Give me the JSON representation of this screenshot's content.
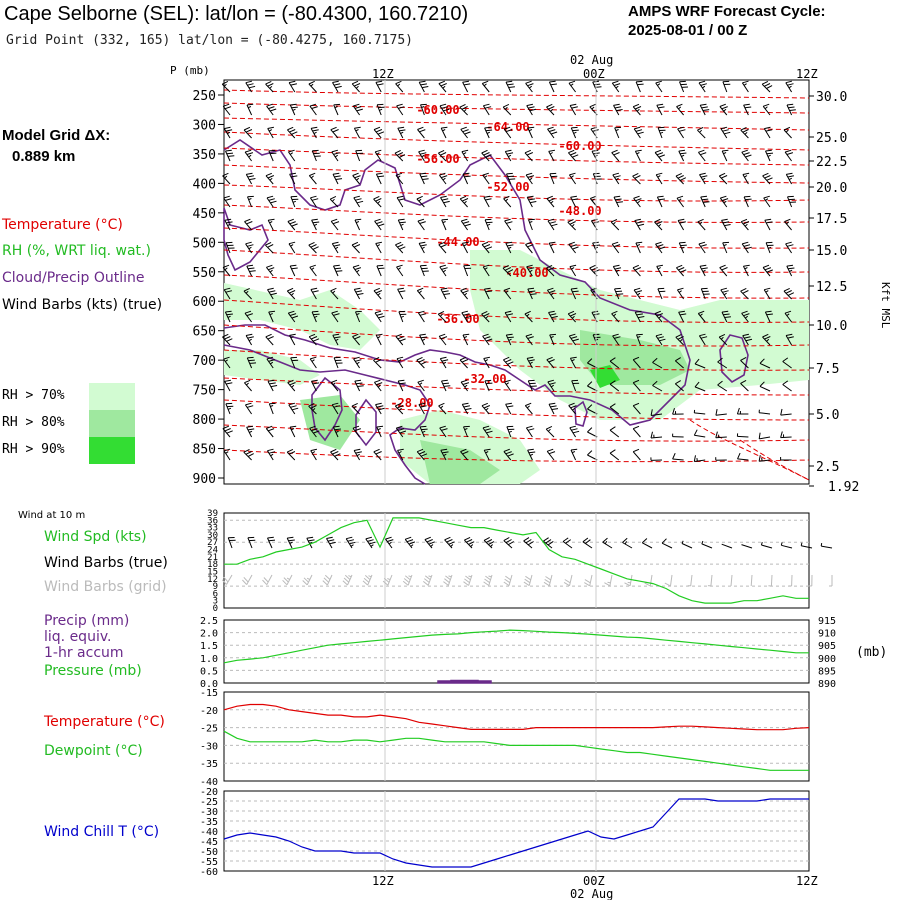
{
  "header": {
    "title": "Cape Selborne (SEL):  lat/lon = (-80.4300, 160.7210)",
    "subtitle": "Grid Point (332, 165) lat/lon = (-80.4275, 160.7175)",
    "cycle_line1": "AMPS WRF Forecast Cycle:",
    "cycle_line2": "2025-08-01 / 00  Z"
  },
  "model": {
    "grid_label": "Model Grid ΔX:",
    "grid_value": "0.889 km"
  },
  "legend": {
    "temperature": "Temperature (°C)",
    "rh": "RH (%, WRT liq. wat.)",
    "cloud": "Cloud/Precip Outline",
    "wind": "Wind Barbs (kts) (true)",
    "rh70": "RH > 70%",
    "rh80": "RH > 80%",
    "rh90": "RH > 90%"
  },
  "colors": {
    "temperature": "#ff0000",
    "rh": "#22cc22",
    "cloud": "#6a2a8a",
    "wind_true": "#000000",
    "wind_grid": "#bbbbbb",
    "precip": "#6a2a8a",
    "pressure": "#22cc22",
    "wind_chill": "#0000cc",
    "rh70": "#d2fbd2",
    "rh80": "#9fe89f",
    "rh90": "#33dd33"
  },
  "chart_data": [
    {
      "type": "heatmap",
      "name": "time-height cross section",
      "x_ticks": [
        "12Z",
        "00Z",
        "12Z"
      ],
      "date_label": "02 Aug",
      "y_label": "P (mb)",
      "y_ticks": [
        250,
        300,
        350,
        400,
        450,
        500,
        550,
        600,
        650,
        700,
        750,
        800,
        850,
        900
      ],
      "right_label": "Kft MSL",
      "right_ticks": [
        "30.0",
        "25.0",
        "22.5",
        "20.0",
        "17.5",
        "15.0",
        "12.5",
        "10.0",
        "7.5",
        "5.0",
        "2.5",
        "1.92"
      ],
      "temperature_labels": [
        "-60.00",
        "-64.00",
        "-60.00",
        "-56.00",
        "-52.00",
        "-48.00",
        "-44.00",
        "-40.00",
        "-36.00",
        "-32.00",
        "-28.00"
      ]
    },
    {
      "type": "line",
      "name": "wind at 10 m",
      "label": "Wind at 10 m",
      "series_labels": [
        "Wind Spd (kts)",
        "Wind Barbs (true)",
        "Wind Barbs (grid)"
      ],
      "y_ticks": [
        0,
        3,
        6,
        9,
        12,
        15,
        18,
        21,
        24,
        27,
        30,
        33,
        36,
        39
      ],
      "ylim": [
        0,
        39
      ],
      "wind_speed_kts": [
        18,
        18,
        20,
        21,
        23,
        24,
        25,
        27,
        30,
        33,
        35,
        36,
        25,
        37,
        37,
        37,
        36,
        35,
        34,
        33,
        33,
        32,
        31,
        30,
        31,
        24,
        21,
        20,
        18,
        16,
        14,
        12,
        11,
        10,
        8,
        5,
        3,
        2,
        2,
        2,
        3,
        3,
        4,
        5,
        4,
        4
      ]
    },
    {
      "type": "line",
      "name": "precip and pressure",
      "series_labels": [
        "Precip (mm)",
        "liq. equiv.",
        "1-hr accum",
        "Pressure (mb)"
      ],
      "left_ticks": [
        "0.0",
        "0.5",
        "1.0",
        "1.5",
        "2.0",
        "2.5"
      ],
      "right_ticks": [
        890,
        895,
        900,
        905,
        910,
        915
      ],
      "right_unit": "(mb)",
      "left_ylim": [
        0,
        2.5
      ],
      "right_ylim": [
        890,
        915
      ],
      "pressure_mb": [
        898,
        899,
        899.5,
        900,
        901,
        902,
        903,
        904,
        905,
        905.5,
        906,
        906.5,
        907,
        907.5,
        908,
        908.5,
        909,
        909.3,
        909.5,
        910,
        910.3,
        910.6,
        911,
        910.8,
        910.5,
        910.2,
        910,
        909.7,
        909.4,
        909,
        908.6,
        908.2,
        908,
        907.5,
        907,
        906.5,
        906,
        905.5,
        905,
        904.5,
        904,
        903.5,
        903,
        902.5,
        902,
        902
      ],
      "precip_mm": [
        0,
        0,
        0,
        0,
        0,
        0,
        0,
        0,
        0,
        0,
        0,
        0,
        0,
        0,
        0,
        0,
        0,
        0.05,
        0.1,
        0.1,
        0.05,
        0,
        0,
        0,
        0,
        0,
        0,
        0,
        0,
        0,
        0,
        0,
        0,
        0,
        0,
        0,
        0,
        0,
        0,
        0,
        0,
        0,
        0,
        0,
        0,
        0
      ]
    },
    {
      "type": "line",
      "name": "temperature dewpoint",
      "series_labels": [
        "Temperature (°C)",
        "Dewpoint (°C)"
      ],
      "y_ticks": [
        -40,
        -35,
        -30,
        -25,
        -20,
        -15
      ],
      "ylim": [
        -40,
        -15
      ],
      "temperature_c": [
        -20,
        -19,
        -18.5,
        -18.5,
        -19,
        -20,
        -20.5,
        -21,
        -21.5,
        -21.5,
        -22,
        -22,
        -21.5,
        -22,
        -22.5,
        -23.5,
        -24,
        -24.5,
        -25,
        -25.5,
        -25.5,
        -25.5,
        -25.5,
        -25.5,
        -25,
        -25,
        -25,
        -25,
        -25,
        -25,
        -25,
        -25,
        -25,
        -25,
        -24.8,
        -24.6,
        -24.6,
        -24.8,
        -25,
        -25.2,
        -25.4,
        -25.6,
        -25.6,
        -25.6,
        -25.2,
        -25
      ],
      "dewpoint_c": [
        -26,
        -28,
        -29,
        -29,
        -29,
        -29,
        -29,
        -28.5,
        -29,
        -29,
        -28.5,
        -28.5,
        -29,
        -28.5,
        -28,
        -28,
        -28.5,
        -29,
        -29,
        -29,
        -29,
        -29.5,
        -30,
        -30,
        -30,
        -30,
        -30,
        -30,
        -30.5,
        -31,
        -31.5,
        -32,
        -32,
        -32.5,
        -33,
        -33.5,
        -34,
        -34.5,
        -35,
        -35.5,
        -36,
        -36.5,
        -37,
        -37,
        -37,
        -37
      ]
    },
    {
      "type": "line",
      "name": "wind chill",
      "series_labels": [
        "Wind Chill T (°C)"
      ],
      "y_ticks": [
        -60,
        -55,
        -50,
        -45,
        -40,
        -35,
        -30,
        -25,
        -20
      ],
      "ylim": [
        -60,
        -20
      ],
      "wind_chill_c": [
        -44,
        -42,
        -41,
        -42,
        -43,
        -45,
        -48,
        -50,
        -50,
        -50,
        -51,
        -51,
        -51,
        -54,
        -56,
        -57,
        -58,
        -58,
        -58,
        -58,
        -56,
        -54,
        -52,
        -50,
        -48,
        -46,
        -44,
        -42,
        -40,
        -43,
        -44,
        -42,
        -40,
        -38,
        -31,
        -24,
        -24,
        -24,
        -25,
        -25,
        -25,
        -25,
        -24,
        -24,
        -24,
        -24
      ]
    }
  ]
}
